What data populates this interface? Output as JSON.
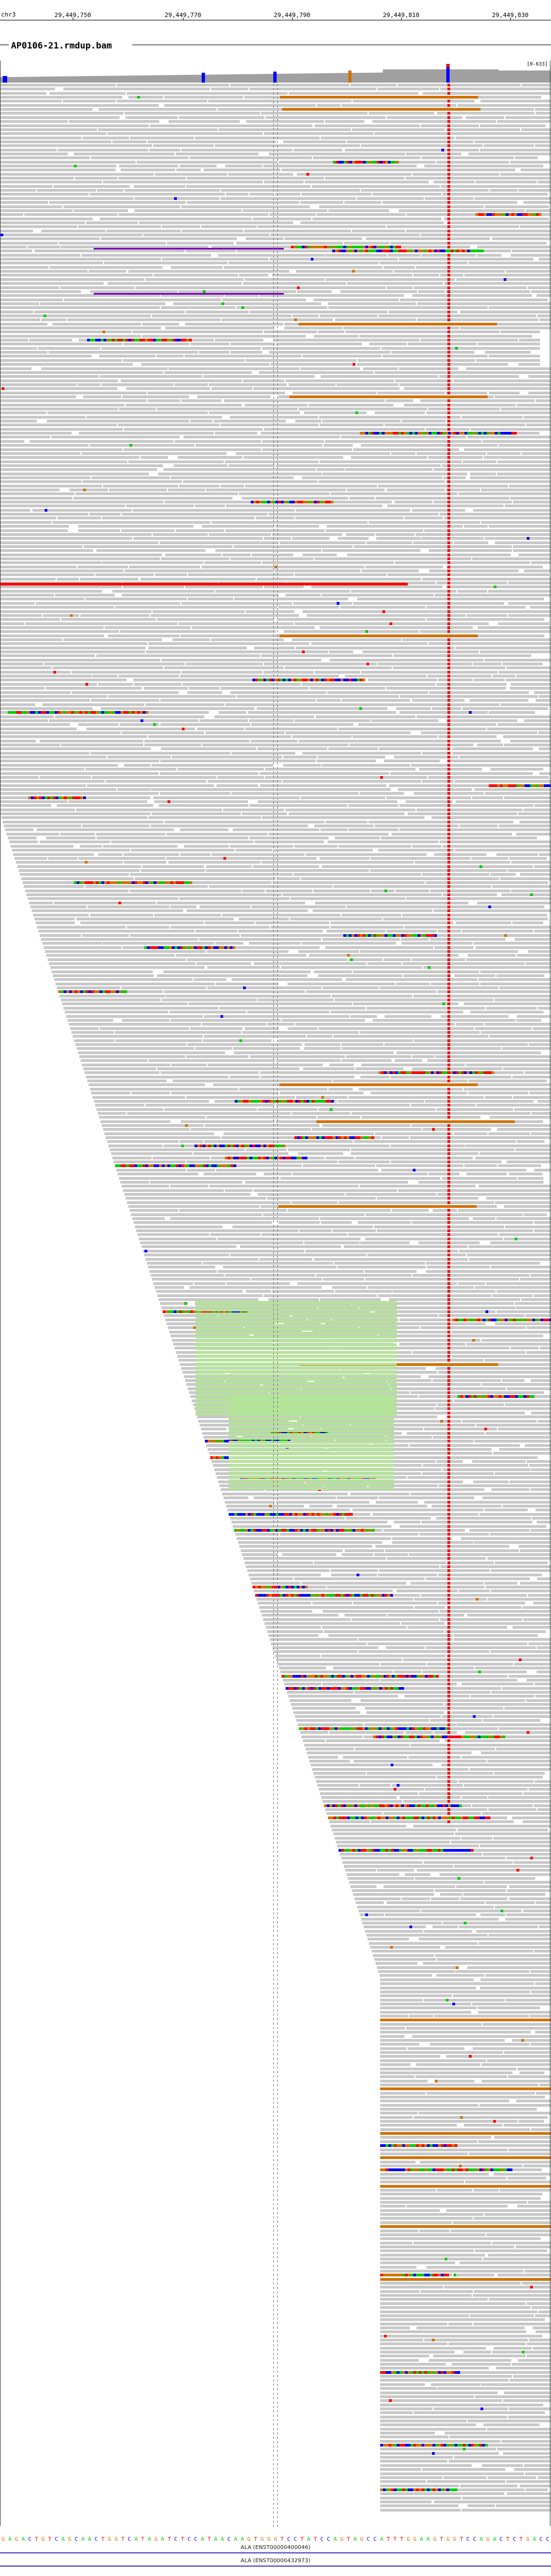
{
  "ruler": {
    "chrom": "chr3",
    "ticks": [
      "29,449,750",
      "29,449,770",
      "29,449,790",
      "29,449,810",
      "29,449,830"
    ]
  },
  "track": {
    "name": "AP0106-21.rmdup.bam",
    "coverage_scale": "[0-633]"
  },
  "transcripts": [
    {
      "label": "ALA (ENST00000400046)"
    },
    {
      "label": "ALA (ENST00000432973)"
    }
  ],
  "sequence": "GAGACTGTCAGCAACTGGTCATAGATCTCCATAACAAGTGGGTCCTATCCAGTAGCCATTTGGAAGTGGTCCAGACTCTGACC",
  "colors": {
    "read": "#c8c8c8",
    "A": "#00cc00",
    "C": "#0000ff",
    "G": "#d17105",
    "T": "#ff0000",
    "insertion": "#7f00bf",
    "soft_clip": "#b4e39a"
  },
  "icons": [
    "center-line-marker"
  ]
}
